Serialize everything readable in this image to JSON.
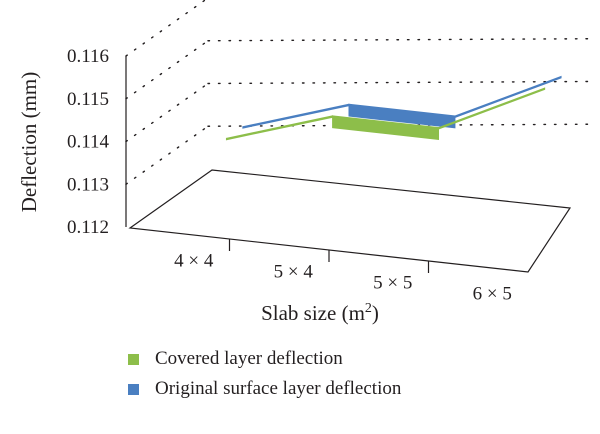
{
  "chart_data": {
    "type": "area",
    "style": "3d-ribbon",
    "categories": [
      "4 × 4",
      "5 × 4",
      "5 × 5",
      "6 × 5"
    ],
    "xlabel": "Slab size (m",
    "xlabel_sup": "2",
    "xlabel_close": ")",
    "ylabel": "Deflection (mm)",
    "ylim": [
      0.112,
      0.116
    ],
    "yticks": [
      "0.112",
      "0.113",
      "0.114",
      "0.115",
      "0.116"
    ],
    "grid": true,
    "legend_position": "bottom",
    "series": [
      {
        "name": "Covered layer deflection",
        "color": "#8dbe4a",
        "values": [
          0.1138,
          0.1146,
          0.1146,
          0.1158
        ]
      },
      {
        "name": "Original surface layer deflection",
        "color": "#4a7fc1",
        "values": [
          0.1138,
          0.1146,
          0.1146,
          0.1158
        ]
      }
    ]
  }
}
